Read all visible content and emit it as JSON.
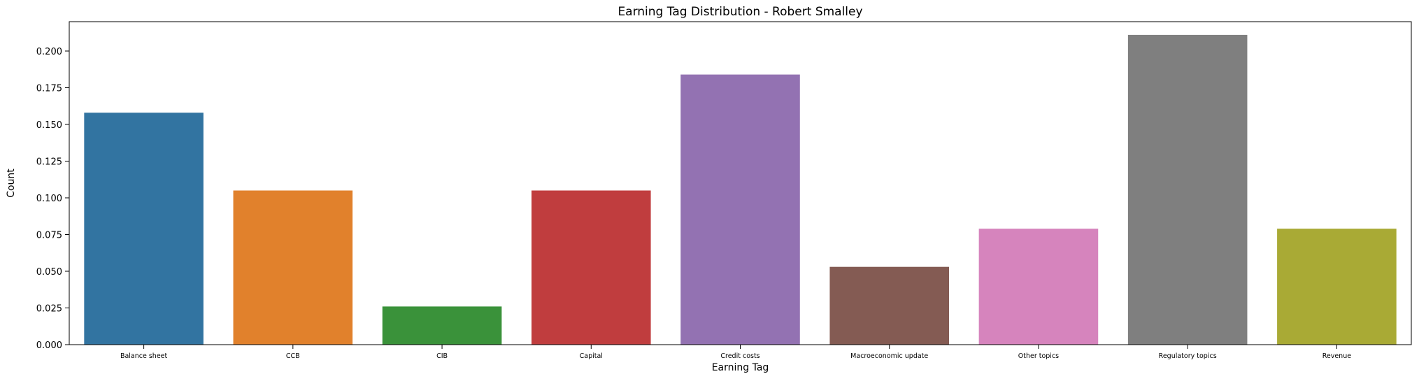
{
  "chart_data": {
    "type": "bar",
    "title": "Earning Tag Distribution - Robert Smalley",
    "xlabel": "Earning Tag",
    "ylabel": "Count",
    "categories": [
      "Balance sheet",
      "CCB",
      "CIB",
      "Capital",
      "Credit costs",
      "Macroeconomic update",
      "Other topics",
      "Regulatory topics",
      "Revenue"
    ],
    "values": [
      0.158,
      0.105,
      0.026,
      0.105,
      0.184,
      0.053,
      0.079,
      0.211,
      0.079
    ],
    "colors": [
      "#3274a1",
      "#e1812c",
      "#3a923a",
      "#c03d3e",
      "#9372b2",
      "#845b53",
      "#d684bd",
      "#7f7f7f",
      "#a9aa35"
    ],
    "ylim": [
      0,
      0.22
    ],
    "yticks": [
      0.0,
      0.025,
      0.05,
      0.075,
      0.1,
      0.125,
      0.15,
      0.175,
      0.2
    ],
    "ytick_labels": [
      "0.000",
      "0.025",
      "0.050",
      "0.075",
      "0.100",
      "0.125",
      "0.150",
      "0.175",
      "0.200"
    ],
    "grid": false,
    "legend": "none"
  }
}
